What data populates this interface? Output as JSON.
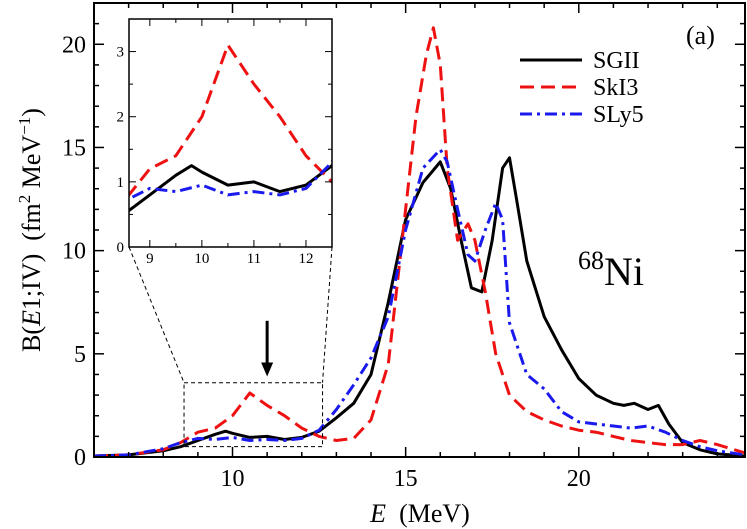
{
  "chart_data": {
    "type": "line",
    "panel_label": "(a)",
    "nucleus": {
      "mass_number": "68",
      "symbol": "Ni"
    },
    "xlabel": {
      "italic": "E",
      "rest": "  (MeV)"
    },
    "ylabel": {
      "pre": "B(",
      "italic": "E",
      "mid": "1;IV)  (fm",
      "sup1": "2",
      "mid2": " MeV",
      "sup2": "−1",
      "post": ")"
    },
    "xlim": [
      6,
      24.8
    ],
    "ylim": [
      0,
      22
    ],
    "xticks": [
      10,
      15,
      20
    ],
    "yticks": [
      0,
      5,
      10,
      15,
      20
    ],
    "series": [
      {
        "name": "SGII",
        "color": "#000000",
        "dash": "solid",
        "x": [
          6,
          7,
          8,
          8.5,
          9,
          9.5,
          9.8,
          10,
          10.5,
          11,
          11.5,
          12,
          12.5,
          13,
          13.5,
          14,
          14.5,
          15,
          15.5,
          16,
          16.3,
          16.6,
          16.9,
          17.2,
          17.5,
          17.8,
          18,
          18.2,
          18.5,
          19,
          19.5,
          20,
          20.5,
          21,
          21.3,
          21.6,
          22,
          22.3,
          22.6,
          23,
          23.5,
          24,
          24.8
        ],
        "y": [
          0.05,
          0.1,
          0.3,
          0.5,
          0.8,
          1.1,
          1.25,
          1.15,
          0.95,
          1.0,
          0.85,
          0.95,
          1.25,
          1.9,
          2.6,
          4.0,
          7.5,
          11.5,
          13.3,
          14.3,
          13.0,
          10.5,
          8.2,
          8.0,
          10.5,
          14.0,
          14.5,
          12.5,
          9.5,
          6.8,
          5.2,
          3.8,
          3.0,
          2.6,
          2.5,
          2.6,
          2.3,
          2.5,
          1.6,
          0.7,
          0.35,
          0.15,
          0.05
        ]
      },
      {
        "name": "SkI3",
        "color": "#ee1111",
        "dash": "dashed",
        "x": [
          6,
          7,
          8,
          8.5,
          9,
          9.5,
          10,
          10.5,
          11,
          11.5,
          12,
          12.5,
          13,
          13.5,
          14,
          14.5,
          15,
          15.3,
          15.6,
          15.8,
          16,
          16.2,
          16.5,
          16.8,
          17,
          17.3,
          17.6,
          18,
          18.5,
          19,
          19.5,
          20,
          20.5,
          21,
          21.5,
          22,
          22.5,
          23,
          23.5,
          24,
          24.8
        ],
        "y": [
          0.05,
          0.1,
          0.35,
          0.7,
          1.2,
          1.4,
          2.0,
          3.1,
          2.5,
          2.0,
          1.4,
          1.0,
          0.8,
          0.9,
          1.8,
          4.5,
          12.0,
          16.5,
          19.5,
          20.8,
          19.0,
          14.0,
          10.5,
          11.3,
          10.5,
          8.0,
          5.0,
          3.0,
          2.2,
          1.8,
          1.5,
          1.3,
          1.2,
          1.0,
          0.8,
          0.7,
          0.6,
          0.6,
          0.8,
          0.6,
          0.2
        ]
      },
      {
        "name": "SLy5",
        "color": "#1a1aee",
        "dash": "dashdot",
        "x": [
          6,
          7,
          8,
          8.5,
          9,
          9.5,
          10,
          10.5,
          11,
          11.5,
          12,
          12.5,
          13,
          13.5,
          14,
          14.5,
          15,
          15.5,
          16,
          16.2,
          16.5,
          16.8,
          17,
          17.3,
          17.6,
          17.8,
          18,
          18.5,
          19,
          19.5,
          20,
          20.5,
          21,
          21.5,
          22,
          22.5,
          23,
          23.5,
          24,
          24.8
        ],
        "y": [
          0.05,
          0.1,
          0.4,
          0.7,
          0.9,
          0.85,
          0.95,
          0.8,
          0.85,
          0.8,
          0.9,
          1.3,
          2.3,
          3.5,
          4.8,
          6.8,
          11.0,
          14.0,
          14.9,
          14.3,
          12.0,
          9.8,
          9.5,
          11.0,
          12.3,
          11.5,
          6.5,
          4.0,
          3.3,
          2.2,
          1.7,
          1.6,
          1.5,
          1.4,
          1.5,
          1.2,
          0.8,
          0.5,
          0.3,
          0.1
        ]
      }
    ],
    "annotation_arrow": {
      "x": 11,
      "y_from": 6.6,
      "y_to": 3.9
    },
    "zoom_box": {
      "xlim": [
        8.6,
        12.6
      ],
      "ylim": [
        0.5,
        3.6
      ]
    },
    "inset": {
      "xlim": [
        8.6,
        12.5
      ],
      "ylim": [
        0,
        3.5
      ],
      "xticks": [
        9,
        10,
        11,
        12
      ],
      "yticks": [
        0,
        1,
        2,
        3
      ]
    }
  }
}
